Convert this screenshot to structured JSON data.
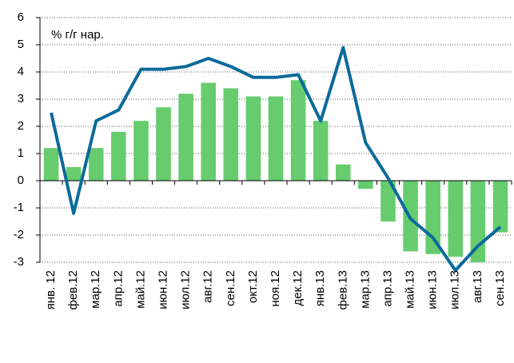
{
  "chart_data": {
    "type": "bar",
    "annotation": "% г/г нар.",
    "categories": [
      "янв. 12",
      "фев.12",
      "мар.12",
      "апр.12",
      "май.12",
      "июн.12",
      "июл.12",
      "авг.12",
      "сен.12",
      "окт.12",
      "ноя.12",
      "дек.12",
      "янв.13",
      "фев.13",
      "мар.13",
      "апр.13",
      "май.13",
      "июн.13",
      "июл.13",
      "авг.13",
      "сен.13"
    ],
    "series": [
      {
        "type": "bar",
        "color": "#66cc6e",
        "values": [
          1.2,
          0.5,
          1.2,
          1.8,
          2.2,
          2.7,
          3.2,
          3.6,
          3.4,
          3.1,
          3.1,
          3.7,
          2.2,
          0.6,
          -0.3,
          -1.5,
          -2.6,
          -2.7,
          -2.8,
          -3.0,
          -1.9
        ]
      },
      {
        "type": "line",
        "color": "#0b6a9b",
        "values": [
          2.5,
          -1.2,
          2.2,
          2.6,
          4.1,
          4.1,
          4.2,
          4.5,
          4.2,
          3.8,
          3.8,
          3.9,
          2.2,
          4.9,
          1.4,
          0.1,
          -1.4,
          -2.1,
          -3.3,
          -2.4,
          -1.7
        ]
      }
    ],
    "ylim": [
      -3,
      6
    ],
    "yticks": [
      -3,
      -2,
      -1,
      0,
      1,
      2,
      3,
      4,
      5,
      6
    ],
    "grid": true
  }
}
